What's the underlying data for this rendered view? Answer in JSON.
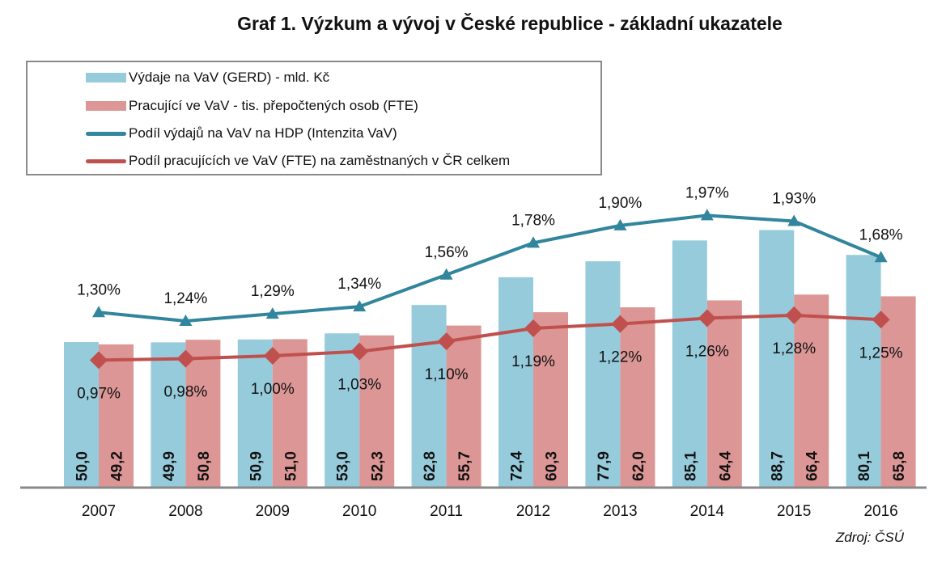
{
  "title": "Graf 1. Výzkum a vývoj v České republice - základní ukazatele",
  "source": "Zdroj: ČSÚ",
  "chart_data": {
    "type": "bar",
    "title": "Graf 1. Výzkum a vývoj v České republice - základní ukazatele",
    "categories": [
      "2007",
      "2008",
      "2009",
      "2010",
      "2011",
      "2012",
      "2013",
      "2014",
      "2015",
      "2016"
    ],
    "legend_position": "top-left",
    "grid": false,
    "series": [
      {
        "name": "Výdaje na VaV (GERD) - mld. Kč",
        "kind": "bar",
        "color": "#96cbdb",
        "values": [
          50.0,
          49.9,
          50.9,
          53.0,
          62.8,
          72.4,
          77.9,
          85.1,
          88.7,
          80.1
        ],
        "labels": [
          "50,0",
          "49,9",
          "50,9",
          "53,0",
          "62,8",
          "72,4",
          "77,9",
          "85,1",
          "88,7",
          "80,1"
        ]
      },
      {
        "name": "Pracující ve VaV - tis. přepočtených osob (FTE)",
        "kind": "bar",
        "color": "#dc9695",
        "values": [
          49.2,
          50.8,
          51.0,
          52.3,
          55.7,
          60.3,
          62.0,
          64.4,
          66.4,
          65.8
        ],
        "labels": [
          "49,2",
          "50,8",
          "51,0",
          "52,3",
          "55,7",
          "60,3",
          "62,0",
          "64,4",
          "66,4",
          "65,8"
        ]
      },
      {
        "name": "Podíl výdajů na VaV na HDP (Intenzita VaV)",
        "kind": "line",
        "marker": "triangle",
        "color": "#31859c",
        "values": [
          1.3,
          1.24,
          1.29,
          1.34,
          1.56,
          1.78,
          1.9,
          1.97,
          1.93,
          1.68
        ],
        "labels": [
          "1,30%",
          "1,24%",
          "1,29%",
          "1,34%",
          "1,56%",
          "1,78%",
          "1,90%",
          "1,97%",
          "1,93%",
          "1,68%"
        ]
      },
      {
        "name": "Podíl pracujících ve VaV (FTE) na zaměstnaných v ČR celkem",
        "kind": "line",
        "marker": "diamond",
        "color": "#c0504d",
        "values": [
          0.97,
          0.98,
          1.0,
          1.03,
          1.1,
          1.19,
          1.22,
          1.26,
          1.28,
          1.25
        ],
        "labels": [
          "0,97%",
          "0,98%",
          "1,00%",
          "1,03%",
          "1,10%",
          "1,19%",
          "1,22%",
          "1,26%",
          "1,28%",
          "1,25%"
        ]
      }
    ]
  }
}
